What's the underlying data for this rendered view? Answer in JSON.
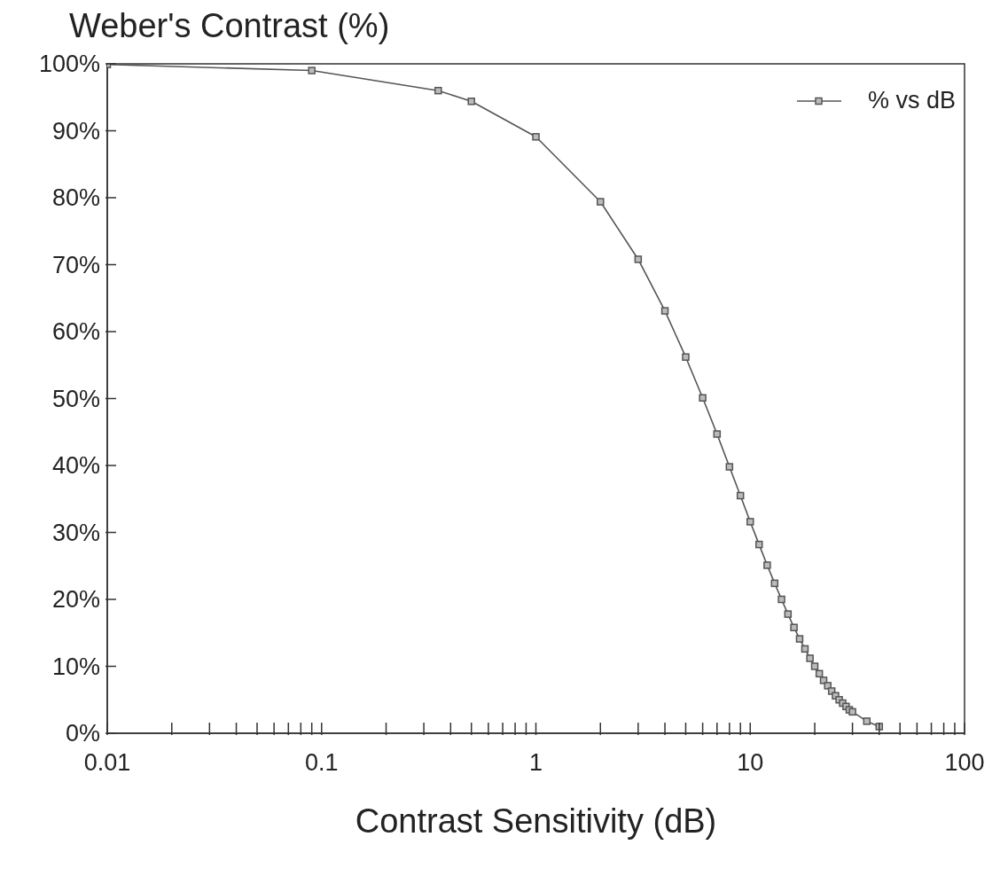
{
  "chart_data": {
    "type": "line",
    "ylabel": "Weber's Contrast (%)",
    "xlabel": "Contrast Sensitivity (dB)",
    "x": [
      0.01,
      0.09,
      0.35,
      0.5,
      1,
      2,
      3,
      4,
      5,
      6,
      7,
      8,
      9,
      10,
      11,
      12,
      13,
      14,
      15,
      16,
      17,
      18,
      19,
      20,
      21,
      22,
      23,
      24,
      25,
      26,
      27,
      28,
      29,
      30,
      35,
      40
    ],
    "series": [
      {
        "name": "% vs dB",
        "color": "#555555",
        "values": [
          99.9,
          99.0,
          96.0,
          94.4,
          89.1,
          79.4,
          70.8,
          63.1,
          56.2,
          50.1,
          44.7,
          39.8,
          35.5,
          31.6,
          28.2,
          25.1,
          22.4,
          20.0,
          17.8,
          15.8,
          14.1,
          12.6,
          11.2,
          10.0,
          8.9,
          7.9,
          7.1,
          6.3,
          5.6,
          5.0,
          4.5,
          4.0,
          3.5,
          3.2,
          1.8,
          1.0
        ]
      }
    ],
    "log": "x",
    "xlim": [
      0.01,
      100
    ],
    "ylim": [
      0,
      100
    ],
    "xticks": [
      0.01,
      {
        "value": 0.02,
        "label": null
      },
      {
        "value": 0.03,
        "label": null
      },
      {
        "value": 0.04,
        "label": null
      },
      {
        "value": 0.05,
        "label": null
      },
      {
        "value": 0.06,
        "label": null
      },
      {
        "value": 0.07,
        "label": null
      },
      {
        "value": 0.08,
        "label": null
      },
      {
        "value": 0.09,
        "label": null
      },
      0.1,
      {
        "value": 0.2,
        "label": null
      },
      {
        "value": 0.3,
        "label": null
      },
      {
        "value": 0.4,
        "label": null
      },
      {
        "value": 0.5,
        "label": null
      },
      {
        "value": 0.6,
        "label": null
      },
      {
        "value": 0.7,
        "label": null
      },
      {
        "value": 0.8,
        "label": null
      },
      {
        "value": 0.9,
        "label": null
      },
      1,
      {
        "value": 2,
        "label": null
      },
      {
        "value": 3,
        "label": null
      },
      {
        "value": 4,
        "label": null
      },
      {
        "value": 5,
        "label": null
      },
      {
        "value": 6,
        "label": null
      },
      {
        "value": 7,
        "label": null
      },
      {
        "value": 8,
        "label": null
      },
      {
        "value": 9,
        "label": null
      },
      10,
      {
        "value": 20,
        "label": null
      },
      {
        "value": 30,
        "label": null
      },
      {
        "value": 40,
        "label": null
      },
      {
        "value": 50,
        "label": null
      },
      {
        "value": 60,
        "label": null
      },
      {
        "value": 70,
        "label": null
      },
      {
        "value": 80,
        "label": null
      },
      {
        "value": 90,
        "label": null
      },
      100
    ],
    "yticks": [
      {
        "value": 0,
        "label": "0%"
      },
      {
        "value": 10,
        "label": "10%"
      },
      {
        "value": 20,
        "label": "20%"
      },
      {
        "value": 30,
        "label": "30%"
      },
      {
        "value": 40,
        "label": "40%"
      },
      {
        "value": 50,
        "label": "50%"
      },
      {
        "value": 60,
        "label": "60%"
      },
      {
        "value": 70,
        "label": "70%"
      },
      {
        "value": 80,
        "label": "80%"
      },
      {
        "value": 90,
        "label": "90%"
      },
      {
        "value": 100,
        "label": "100%"
      }
    ],
    "legend": "top right",
    "marker": "square",
    "line_style": "solid",
    "grid": false
  }
}
